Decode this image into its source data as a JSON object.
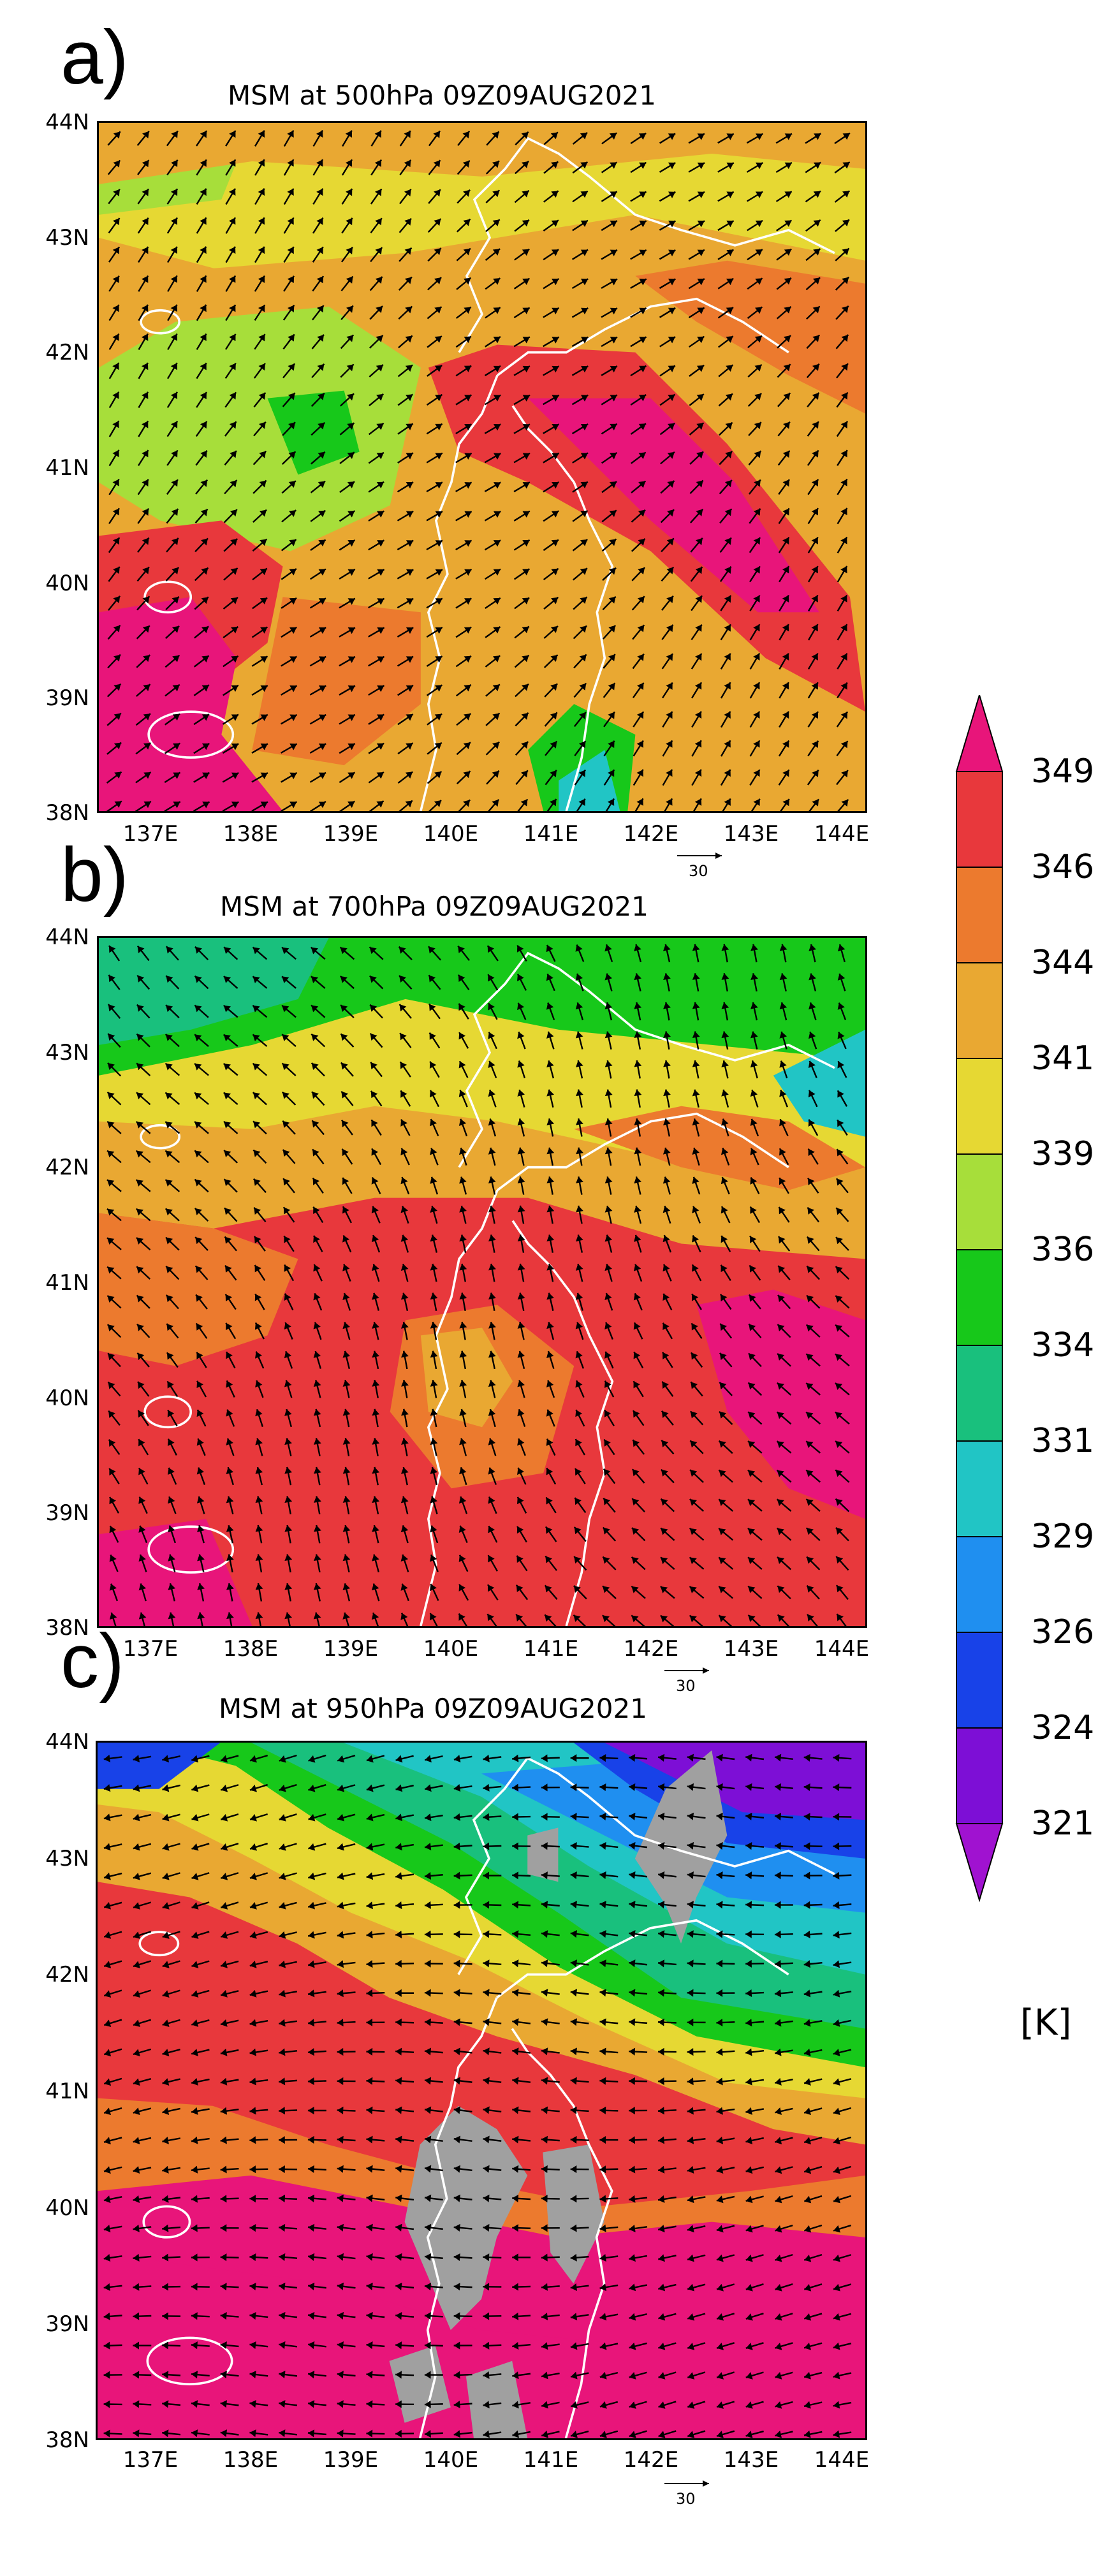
{
  "panels": [
    {
      "id": "a",
      "letter": "a)",
      "title": "MSM at 500hPa 09Z09AUG2021",
      "lat_labels": [
        "44N",
        "43N",
        "42N",
        "41N",
        "40N",
        "39N",
        "38N"
      ],
      "lon_labels": [
        "137E",
        "138E",
        "139E",
        "140E",
        "141E",
        "142E",
        "143E",
        "144E"
      ],
      "vector_ref_label": "30",
      "wind_direction_deg_from_east": 45
    },
    {
      "id": "b",
      "letter": "b)",
      "title": "MSM at 700hPa 09Z09AUG2021",
      "lat_labels": [
        "44N",
        "43N",
        "42N",
        "41N",
        "40N",
        "39N",
        "38N"
      ],
      "lon_labels": [
        "137E",
        "138E",
        "139E",
        "140E",
        "141E",
        "142E",
        "143E",
        "144E"
      ],
      "vector_ref_label": "30",
      "wind_direction_deg_from_east": 120
    },
    {
      "id": "c",
      "letter": "c)",
      "title": "MSM at 950hPa 09Z09AUG2021",
      "lat_labels": [
        "44N",
        "43N",
        "42N",
        "41N",
        "40N",
        "39N",
        "38N"
      ],
      "lon_labels": [
        "137E",
        "138E",
        "139E",
        "140E",
        "141E",
        "142E",
        "143E",
        "144E"
      ],
      "vector_ref_label": "30",
      "wind_direction_deg_from_east": 185
    }
  ],
  "colorbar": {
    "unit": "[K]",
    "labels": [
      "349",
      "346",
      "344",
      "341",
      "339",
      "336",
      "334",
      "331",
      "329",
      "326",
      "324",
      "321"
    ],
    "colors": [
      "#e8157a",
      "#e8383c",
      "#ec7a2e",
      "#e9a832",
      "#e6d833",
      "#a7de3a",
      "#17c81a",
      "#19c07d",
      "#21c5c5",
      "#1f8ff0",
      "#1842e8",
      "#7d0fd6",
      "#a012d0"
    ]
  },
  "map_colors": {
    "missing": "#a0a0a0",
    "coast": "#ffffff",
    "arrow": "#000000"
  }
}
